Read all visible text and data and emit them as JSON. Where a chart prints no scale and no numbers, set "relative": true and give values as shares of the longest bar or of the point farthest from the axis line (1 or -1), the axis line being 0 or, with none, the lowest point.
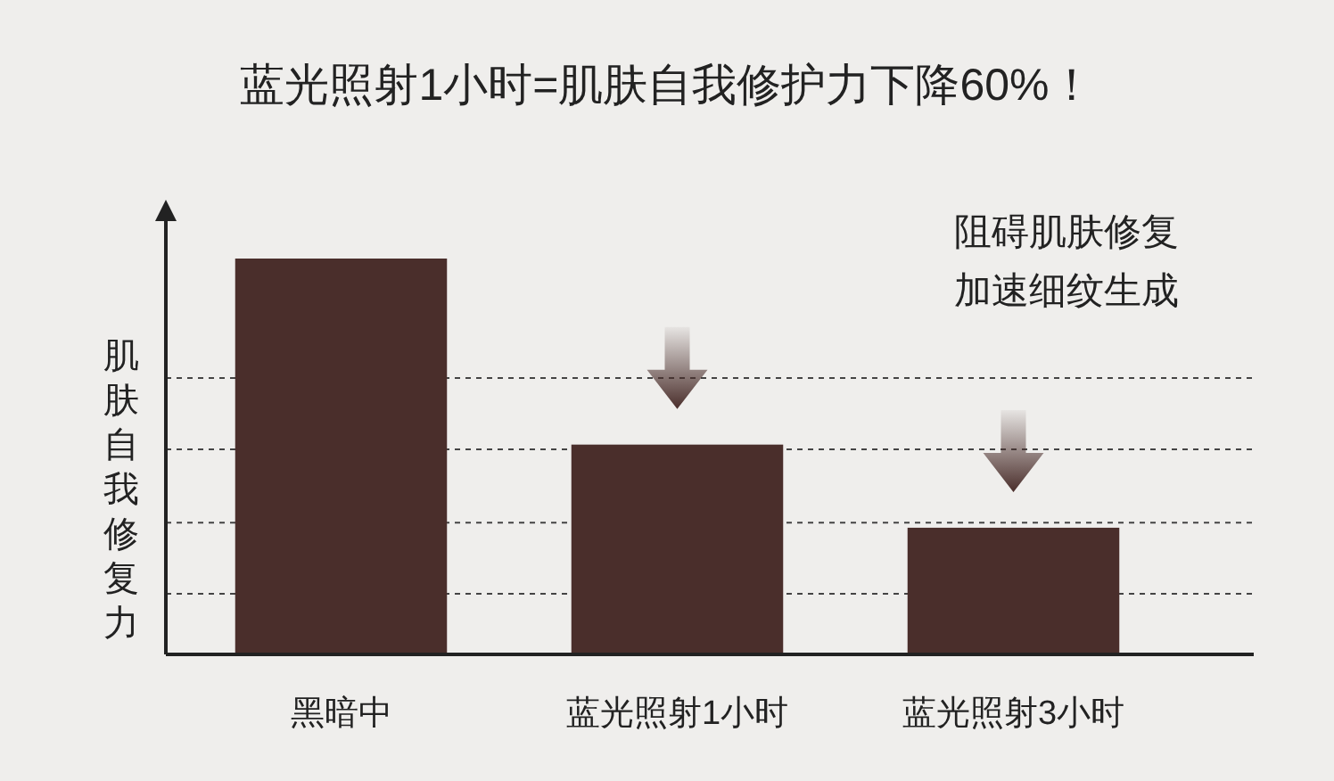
{
  "chart_data": {
    "type": "bar",
    "title": "蓝光照射1小时=肌肤自我修护力下降60%！",
    "ylabel": "肌肤自我修复力",
    "categories": [
      "黑暗中",
      "蓝光照射1小时",
      "蓝光照射3小时"
    ],
    "values": [
      1,
      0.53,
      0.32
    ],
    "color": "#4a2e2b",
    "relative": true,
    "ref_lines": [
      {
        "axis": "y",
        "value": 0.153,
        "line_style": "dashed"
      },
      {
        "axis": "y",
        "value": 0.333,
        "line_style": "dashed"
      },
      {
        "axis": "y",
        "value": 0.518,
        "line_style": "dashed"
      },
      {
        "axis": "y",
        "value": 0.698,
        "line_style": "dashed"
      }
    ],
    "annotations": [
      "阻碍肌肤修复",
      "加速细纹生成"
    ]
  }
}
